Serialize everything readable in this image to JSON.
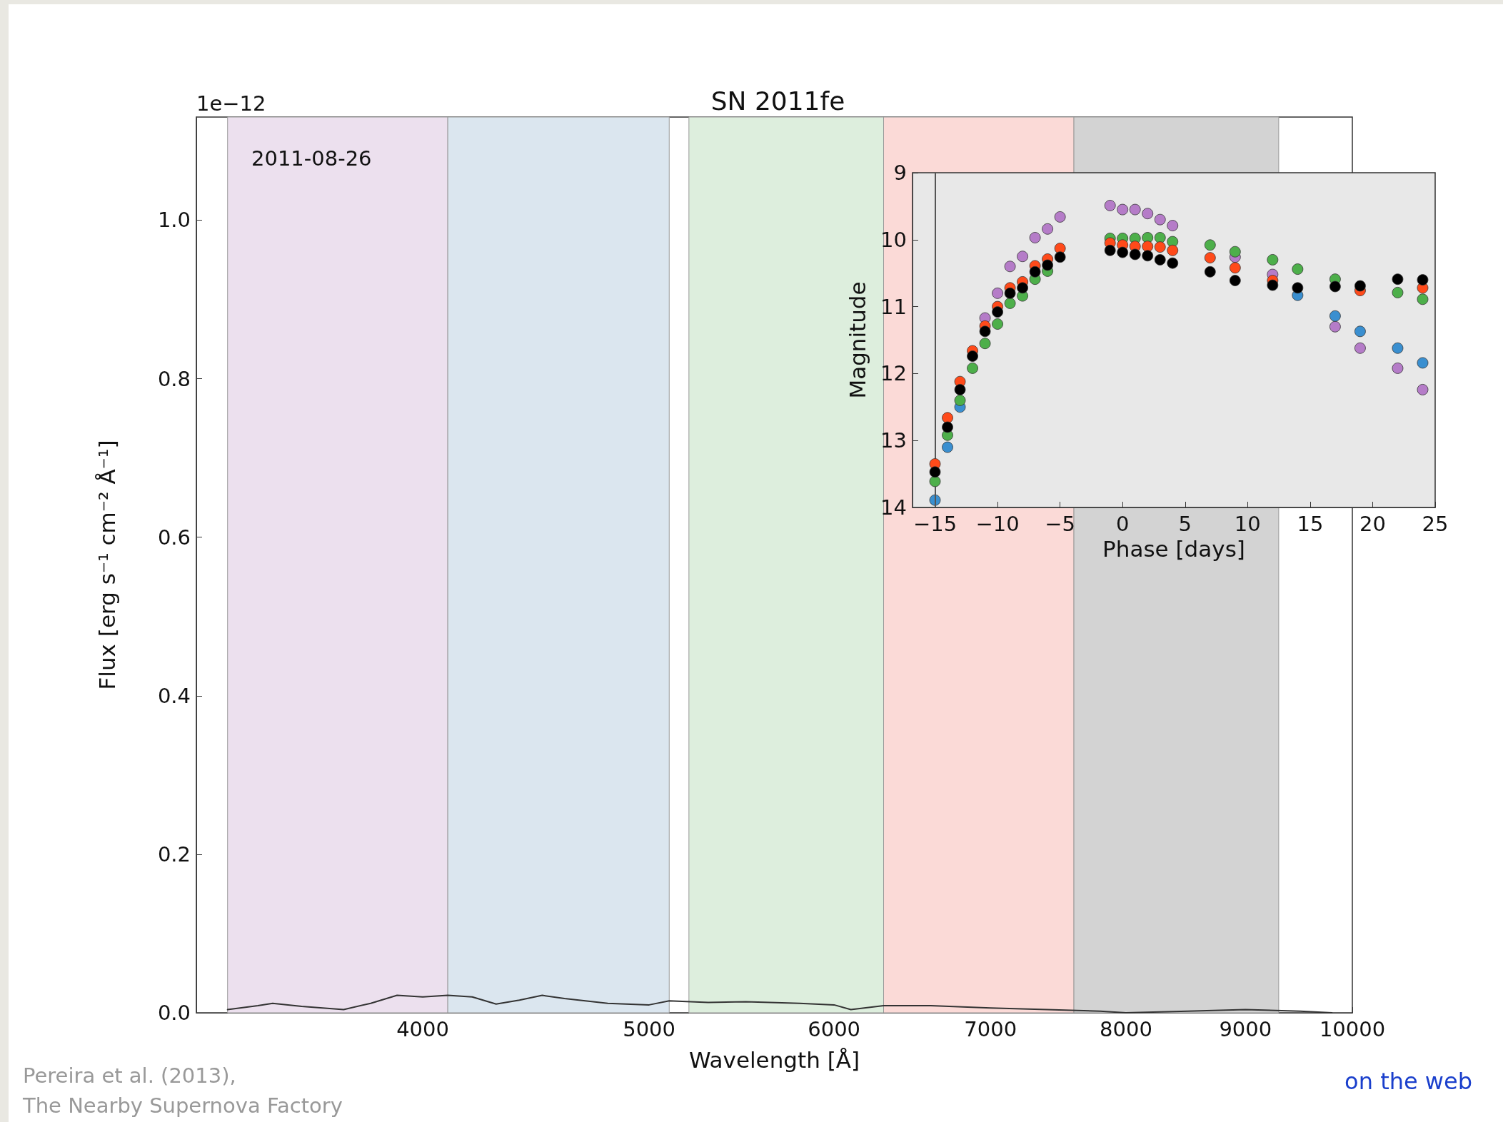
{
  "chart_data": [
    {
      "type": "line",
      "title": "SN 2011fe",
      "xlabel": "Wavelength [Å]",
      "ylabel": "Flux [erg s⁻¹ cm⁻² Å⁻¹]",
      "x": [
        3300,
        3400,
        3450,
        3550,
        3700,
        3800,
        3900,
        4000,
        4100,
        4200,
        4300,
        4400,
        4500,
        4600,
        4800,
        5000,
        5100,
        5300,
        5500,
        5800,
        6000,
        6100,
        6300,
        6600,
        7000,
        7400,
        7800,
        8000,
        8500,
        9000,
        9500,
        9800
      ],
      "series": [
        {
          "color": "#333333",
          "values": [
            0.004,
            0.009,
            0.012,
            0.008,
            0.004,
            0.012,
            0.022,
            0.02,
            0.022,
            0.02,
            0.011,
            0.016,
            0.022,
            0.018,
            0.012,
            0.01,
            0.015,
            0.013,
            0.014,
            0.012,
            0.01,
            0.004,
            0.009,
            0.009,
            0.006,
            0.004,
            0.002,
            0.0,
            0.002,
            0.004,
            0.002,
            0.0
          ]
        }
      ],
      "xlim": [
        3200,
        10000
      ],
      "xticks": [
        4000,
        5000,
        6000,
        7000,
        8000,
        9000,
        10000
      ],
      "ylim": [
        0,
        1.13
      ],
      "yticks": [
        {
          "value": 0,
          "label": "0.0"
        },
        {
          "value": 0.2,
          "label": "0.2"
        },
        {
          "value": 0.4,
          "label": "0.4"
        },
        {
          "value": 0.6,
          "label": "0.6"
        },
        {
          "value": 0.8,
          "label": "0.8"
        },
        {
          "value": 1,
          "label": "1.0"
        }
      ],
      "log": "x",
      "grid": false,
      "legend": false,
      "marker": "none",
      "line_style": "solid",
      "bands": [
        {
          "axis": "x",
          "from": 3300,
          "to": 4100,
          "color": "#ece0ee"
        },
        {
          "axis": "x",
          "from": 4100,
          "to": 5100,
          "color": "#dbe6ef"
        },
        {
          "axis": "x",
          "from": 5200,
          "to": 6300,
          "color": "#ddeedd"
        },
        {
          "axis": "x",
          "from": 6300,
          "to": 7600,
          "color": "#fbdad7"
        },
        {
          "axis": "x",
          "from": 7600,
          "to": 9300,
          "color": "#d3d3d3"
        }
      ],
      "annotations": [
        "1e−12",
        "2011-08-26",
        "Pereira et al. (2013),\nThe Nearby Supernova Factory",
        "on the web"
      ]
    },
    {
      "type": "scatter",
      "xlabel": "Phase [days]",
      "ylabel": "Magnitude",
      "x": [
        -15,
        -14,
        -13,
        -12,
        -11,
        -10,
        -9,
        -8,
        -7,
        -6,
        -5,
        -1,
        0,
        1,
        2,
        3,
        4,
        7,
        9,
        12,
        14,
        17,
        19,
        22,
        24
      ],
      "series": [
        {
          "color": "#b57cc8",
          "values": [
            null,
            null,
            null,
            null,
            11.17,
            10.8,
            10.4,
            10.25,
            9.97,
            9.84,
            9.66,
            9.49,
            9.55,
            9.55,
            9.61,
            9.7,
            9.79,
            null,
            10.26,
            10.52,
            null,
            11.3,
            11.62,
            11.92,
            12.24
          ]
        },
        {
          "color": "#3a8fd0",
          "values": [
            13.89,
            13.1,
            12.5,
            null,
            null,
            null,
            null,
            null,
            null,
            null,
            null,
            null,
            null,
            null,
            null,
            null,
            null,
            null,
            null,
            null,
            10.83,
            11.14,
            11.37,
            11.62,
            11.84
          ]
        },
        {
          "color": "#4daf4a",
          "values": [
            13.61,
            12.92,
            12.4,
            11.92,
            11.55,
            11.26,
            10.95,
            10.84,
            10.59,
            10.47,
            null,
            9.98,
            9.98,
            9.98,
            9.97,
            9.97,
            10.03,
            10.08,
            10.18,
            10.3,
            10.44,
            10.59,
            null,
            10.79,
            10.89
          ]
        },
        {
          "color": "#ff4a1a",
          "values": [
            13.35,
            12.66,
            12.12,
            11.66,
            11.29,
            11.0,
            10.72,
            10.63,
            10.39,
            10.29,
            10.13,
            10.05,
            10.08,
            10.1,
            10.1,
            10.11,
            10.16,
            10.27,
            10.42,
            10.61,
            null,
            null,
            10.76,
            null,
            10.72
          ]
        },
        {
          "color": "#000000",
          "values": [
            13.47,
            12.8,
            12.24,
            11.74,
            11.37,
            11.08,
            10.8,
            10.72,
            10.48,
            10.38,
            10.26,
            10.16,
            10.19,
            10.22,
            10.24,
            10.3,
            10.35,
            10.48,
            10.61,
            10.68,
            10.72,
            10.7,
            10.69,
            10.59,
            10.6
          ]
        }
      ],
      "xlim": [
        -16.8,
        25
      ],
      "xticks": [
        {
          "value": -15,
          "label": "−15"
        },
        {
          "value": -10,
          "label": "−10"
        },
        {
          "value": -5,
          "label": "−5"
        },
        0,
        5,
        10,
        15,
        20,
        25
      ],
      "ylim": [
        14,
        9
      ],
      "yticks": [
        9,
        10,
        11,
        12,
        13,
        14
      ],
      "ref_lines": [
        {
          "axis": "x",
          "value": -15,
          "color": "#555555"
        }
      ],
      "grid": false,
      "legend": false,
      "marker": "circle"
    }
  ]
}
